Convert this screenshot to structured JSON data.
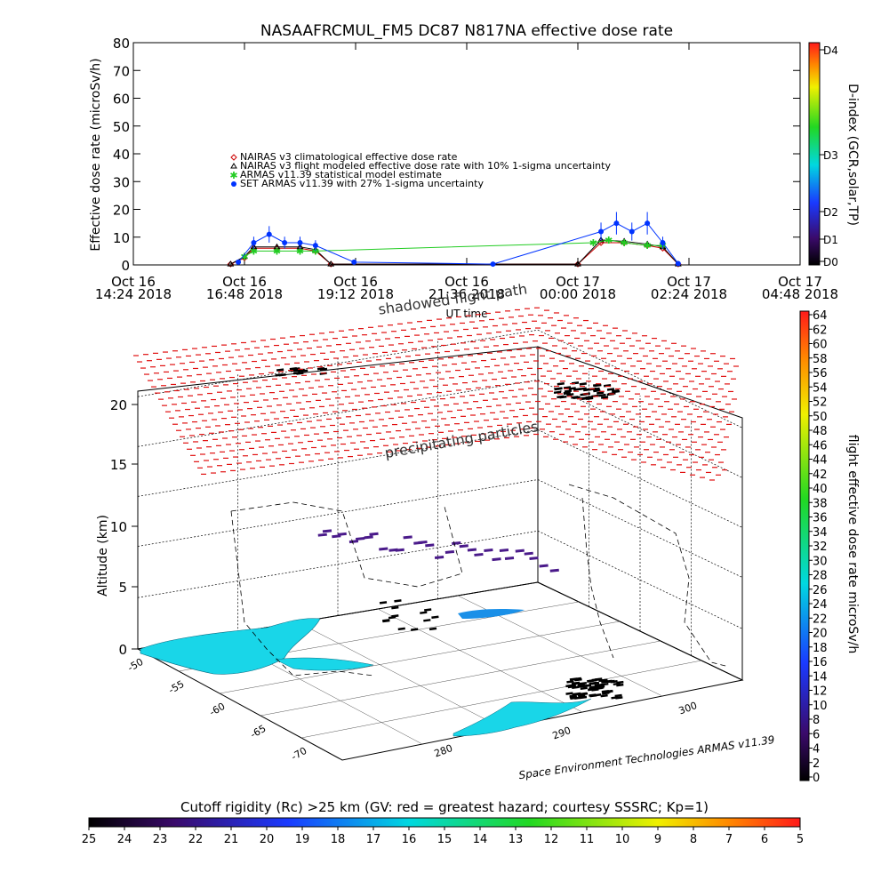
{
  "top_chart": {
    "title": "NASAAFRCMUL_FM5 DC87 N817NA effective dose rate",
    "ylabel": "Effective dose rate (microSv/h)",
    "xlabel": "UT time",
    "yticks": [
      "0",
      "10",
      "20",
      "30",
      "40",
      "50",
      "60",
      "70",
      "80"
    ],
    "xticks": [
      {
        "line1": "Oct 16",
        "line2": "14:24 2018"
      },
      {
        "line1": "Oct 16",
        "line2": "16:48 2018"
      },
      {
        "line1": "Oct 16",
        "line2": "19:12 2018"
      },
      {
        "line1": "Oct 16",
        "line2": "21:36 2018"
      },
      {
        "line1": "Oct 17",
        "line2": "00:00 2018"
      },
      {
        "line1": "Oct 17",
        "line2": "02:24 2018"
      },
      {
        "line1": "Oct 17",
        "line2": "04:48 2018"
      }
    ],
    "legend": [
      {
        "label": "NAIRAS v3 climatological effective dose rate",
        "color": "#cc0000",
        "marker": "diamond"
      },
      {
        "label": "NAIRAS v3 flight modeled effective dose rate with 10% 1-sigma uncertainty",
        "color": "#000000",
        "marker": "triangle"
      },
      {
        "label": "ARMAS v11.39 statistical model estimate",
        "color": "#22cc22",
        "marker": "star"
      },
      {
        "label": "SET ARMAS v11.39 with 27% 1-sigma uncertainty",
        "color": "#0033ff",
        "marker": "circle"
      }
    ],
    "dindex_label": "D-index (GCR,solar,TP)",
    "dindex_ticks": [
      "D0",
      "D1",
      "D2",
      "D3",
      "D4"
    ],
    "shadowed_label": "shadowed flight path"
  },
  "bottom_chart": {
    "zlabel": "Altitude (km)",
    "zticks": [
      "0",
      "5",
      "10",
      "15",
      "20"
    ],
    "lat_ticks": [
      "-50",
      "-55",
      "-60",
      "-65",
      "-70"
    ],
    "lon_ticks": [
      "280",
      "290",
      "300"
    ],
    "precip_label": "precipitating particles",
    "credit": "Space Environment Technologies ARMAS v11.39",
    "dose_colorbar_label": "flight effective dose rate microSv/h",
    "dose_colorbar_ticks": [
      "0",
      "2",
      "4",
      "6",
      "8",
      "10",
      "12",
      "14",
      "16",
      "18",
      "20",
      "22",
      "24",
      "26",
      "28",
      "30",
      "32",
      "34",
      "36",
      "38",
      "40",
      "42",
      "44",
      "46",
      "48",
      "50",
      "52",
      "54",
      "56",
      "58",
      "60",
      "62",
      "64"
    ]
  },
  "cutoff_bar": {
    "title": "Cutoff rigidity (Rc) >25 km (GV: red = greatest hazard; courtesy SSSRC; Kp=1)",
    "ticks": [
      "25",
      "24",
      "23",
      "22",
      "21",
      "20",
      "19",
      "18",
      "17",
      "16",
      "15",
      "14",
      "13",
      "12",
      "11",
      "10",
      "9",
      "8",
      "7",
      "6",
      "5"
    ]
  },
  "chart_data": {
    "type": "scatter",
    "title": "NASAAFRCMUL_FM5 DC87 N817NA effective dose rate",
    "xlabel": "UT time",
    "ylabel": "Effective dose rate (microSv/h)",
    "ylim": [
      0,
      80
    ],
    "xlim": [
      "2018-10-16 14:24",
      "2018-10-17 04:48"
    ],
    "x_tick_labels": [
      "Oct 16 14:24 2018",
      "Oct 16 16:48 2018",
      "Oct 16 19:12 2018",
      "Oct 16 21:36 2018",
      "Oct 17 00:00 2018",
      "Oct 17 02:24 2018",
      "Oct 17 04:48 2018"
    ],
    "legend_position": "upper-left",
    "series": [
      {
        "name": "NAIRAS v3 climatological effective dose rate",
        "color": "#cc0000",
        "x": [
          "2018-10-16 16:30",
          "2018-10-16 16:48",
          "2018-10-16 17:00",
          "2018-10-16 17:30",
          "2018-10-16 18:00",
          "2018-10-16 18:20",
          "2018-10-16 18:40",
          "2018-10-17 00:00",
          "2018-10-17 00:30",
          "2018-10-17 01:00",
          "2018-10-17 01:30",
          "2018-10-17 01:50",
          "2018-10-17 02:10"
        ],
        "values": [
          0.3,
          2.5,
          6,
          6,
          6,
          5,
          0.3,
          0.3,
          8,
          8,
          7,
          6,
          0.3
        ]
      },
      {
        "name": "NAIRAS v3 flight modeled effective dose rate with 10% 1-sigma uncertainty",
        "color": "#000000",
        "x": [
          "2018-10-16 16:30",
          "2018-10-16 16:48",
          "2018-10-16 17:00",
          "2018-10-16 17:30",
          "2018-10-16 18:00",
          "2018-10-16 18:20",
          "2018-10-16 18:40",
          "2018-10-17 00:00",
          "2018-10-17 00:30",
          "2018-10-17 01:00",
          "2018-10-17 01:30",
          "2018-10-17 01:50",
          "2018-10-17 02:10"
        ],
        "values": [
          0.3,
          3,
          6.5,
          6.5,
          6.5,
          5.5,
          0.3,
          0.3,
          9,
          8.5,
          7.5,
          6.5,
          0.3
        ]
      },
      {
        "name": "ARMAS v11.39 statistical model estimate",
        "color": "#22cc22",
        "x": [
          "2018-10-16 16:48",
          "2018-10-16 17:00",
          "2018-10-16 17:30",
          "2018-10-16 18:00",
          "2018-10-16 18:20",
          "2018-10-17 00:20",
          "2018-10-17 00:40",
          "2018-10-17 01:00",
          "2018-10-17 01:30",
          "2018-10-17 01:50"
        ],
        "values": [
          3,
          5,
          5,
          5,
          5,
          8,
          9,
          8,
          7,
          7
        ]
      },
      {
        "name": "SET ARMAS v11.39 with 27% 1-sigma uncertainty",
        "color": "#0033ff",
        "x": [
          "2018-10-16 16:40",
          "2018-10-16 17:00",
          "2018-10-16 17:20",
          "2018-10-16 17:40",
          "2018-10-16 18:00",
          "2018-10-16 18:20",
          "2018-10-16 19:10",
          "2018-10-16 22:10",
          "2018-10-17 00:30",
          "2018-10-17 00:50",
          "2018-10-17 01:10",
          "2018-10-17 01:30",
          "2018-10-17 01:50",
          "2018-10-17 02:10"
        ],
        "values": [
          1,
          8,
          11,
          8,
          8,
          7,
          1,
          0.3,
          12,
          15,
          12,
          15,
          8,
          0.5
        ]
      }
    ]
  }
}
